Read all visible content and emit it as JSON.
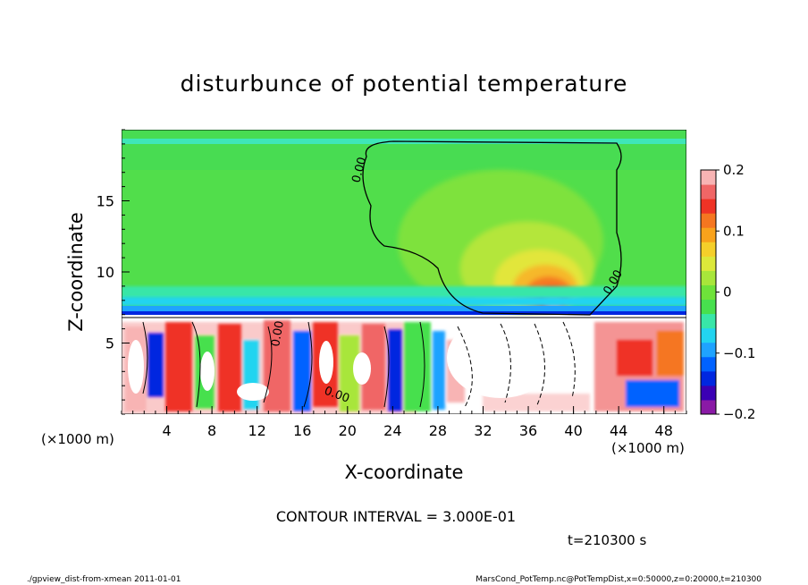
{
  "chart_data": {
    "type": "heatmap",
    "title": "disturbunce of potential temperature",
    "xlabel": "X-coordinate",
    "ylabel": "Z-coordinate",
    "x_unit_left": "(×1000 m)",
    "x_unit_right": "(×1000 m)",
    "xlim": [
      0,
      50
    ],
    "ylim": [
      0,
      20
    ],
    "x_ticks": [
      4,
      8,
      12,
      16,
      20,
      24,
      28,
      32,
      36,
      40,
      44,
      48
    ],
    "x_tick_labels": [
      "4",
      "8",
      "12",
      "16",
      "20",
      "24",
      "28",
      "32",
      "36",
      "40",
      "44",
      "48"
    ],
    "y_ticks": [
      5,
      10,
      15
    ],
    "y_tick_labels": [
      "5",
      "10",
      "15"
    ],
    "colorbar": {
      "range": [
        -0.2,
        0.2
      ],
      "ticks": [
        0.2,
        0.1,
        0,
        -0.1,
        -0.2
      ],
      "tick_labels": [
        "0.2",
        "0.1",
        "0",
        "−0.1",
        "−0.2"
      ],
      "colors": [
        "#8a1aa6",
        "#3b00b4",
        "#0027e0",
        "#0062ff",
        "#1fa3ff",
        "#22d4f0",
        "#38e6a8",
        "#47e04e",
        "#6ee23a",
        "#a8e63a",
        "#dce83a",
        "#f5cf2a",
        "#f8a21c",
        "#f57620",
        "#ef3325",
        "#f06666",
        "#f8b4b4"
      ]
    },
    "contour_labels": [
      "0.00",
      "0.00",
      "0.00",
      "0.00"
    ],
    "contour_interval_text": "CONTOUR INTERVAL = 3.000E-01",
    "time_text": "t=210300 s"
  },
  "footer": {
    "left": "./gpview_dist-from-xmean  2011-01-01",
    "right": "MarsCond_PotTemp.nc@PotTempDist,x=0:50000,z=0:20000,t=210300"
  }
}
